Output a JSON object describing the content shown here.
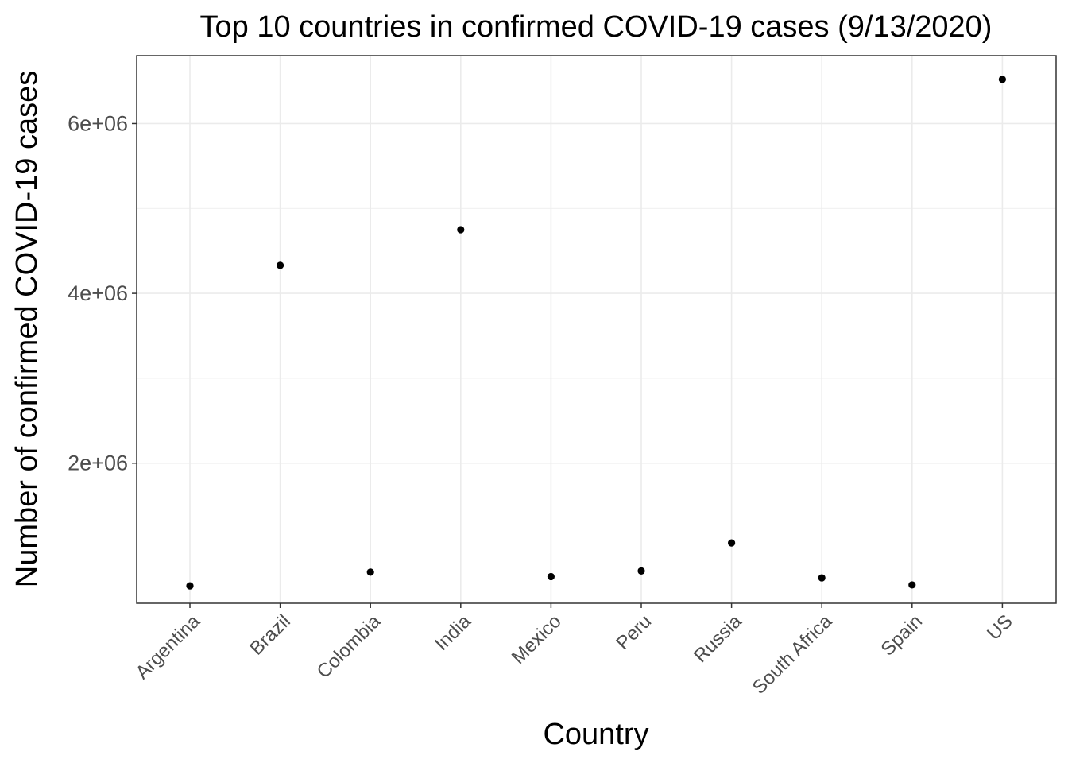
{
  "chart_data": {
    "type": "scatter",
    "title": "Top 10 countries in confirmed COVID-19 cases (9/13/2020)",
    "xlabel": "Country",
    "ylabel": "Number of confirmed COVID-19 cases",
    "categories": [
      "Argentina",
      "Brazil",
      "Colombia",
      "India",
      "Mexico",
      "Peru",
      "Russia",
      "South Africa",
      "Spain",
      "US"
    ],
    "values": [
      555000,
      4330000,
      716000,
      4750000,
      664000,
      730000,
      1060000,
      649000,
      566000,
      6520000
    ],
    "ylim": [
      350000,
      6800000
    ],
    "y_ticks": [
      2000000,
      4000000,
      6000000
    ],
    "y_tick_labels": [
      "2e+06",
      "4e+06",
      "6e+06"
    ],
    "y_minor_ticks": [
      1000000,
      3000000,
      5000000
    ],
    "grid": true,
    "point_color": "#000000",
    "panel_border_color": "#333333",
    "grid_color": "#ebebeb"
  }
}
